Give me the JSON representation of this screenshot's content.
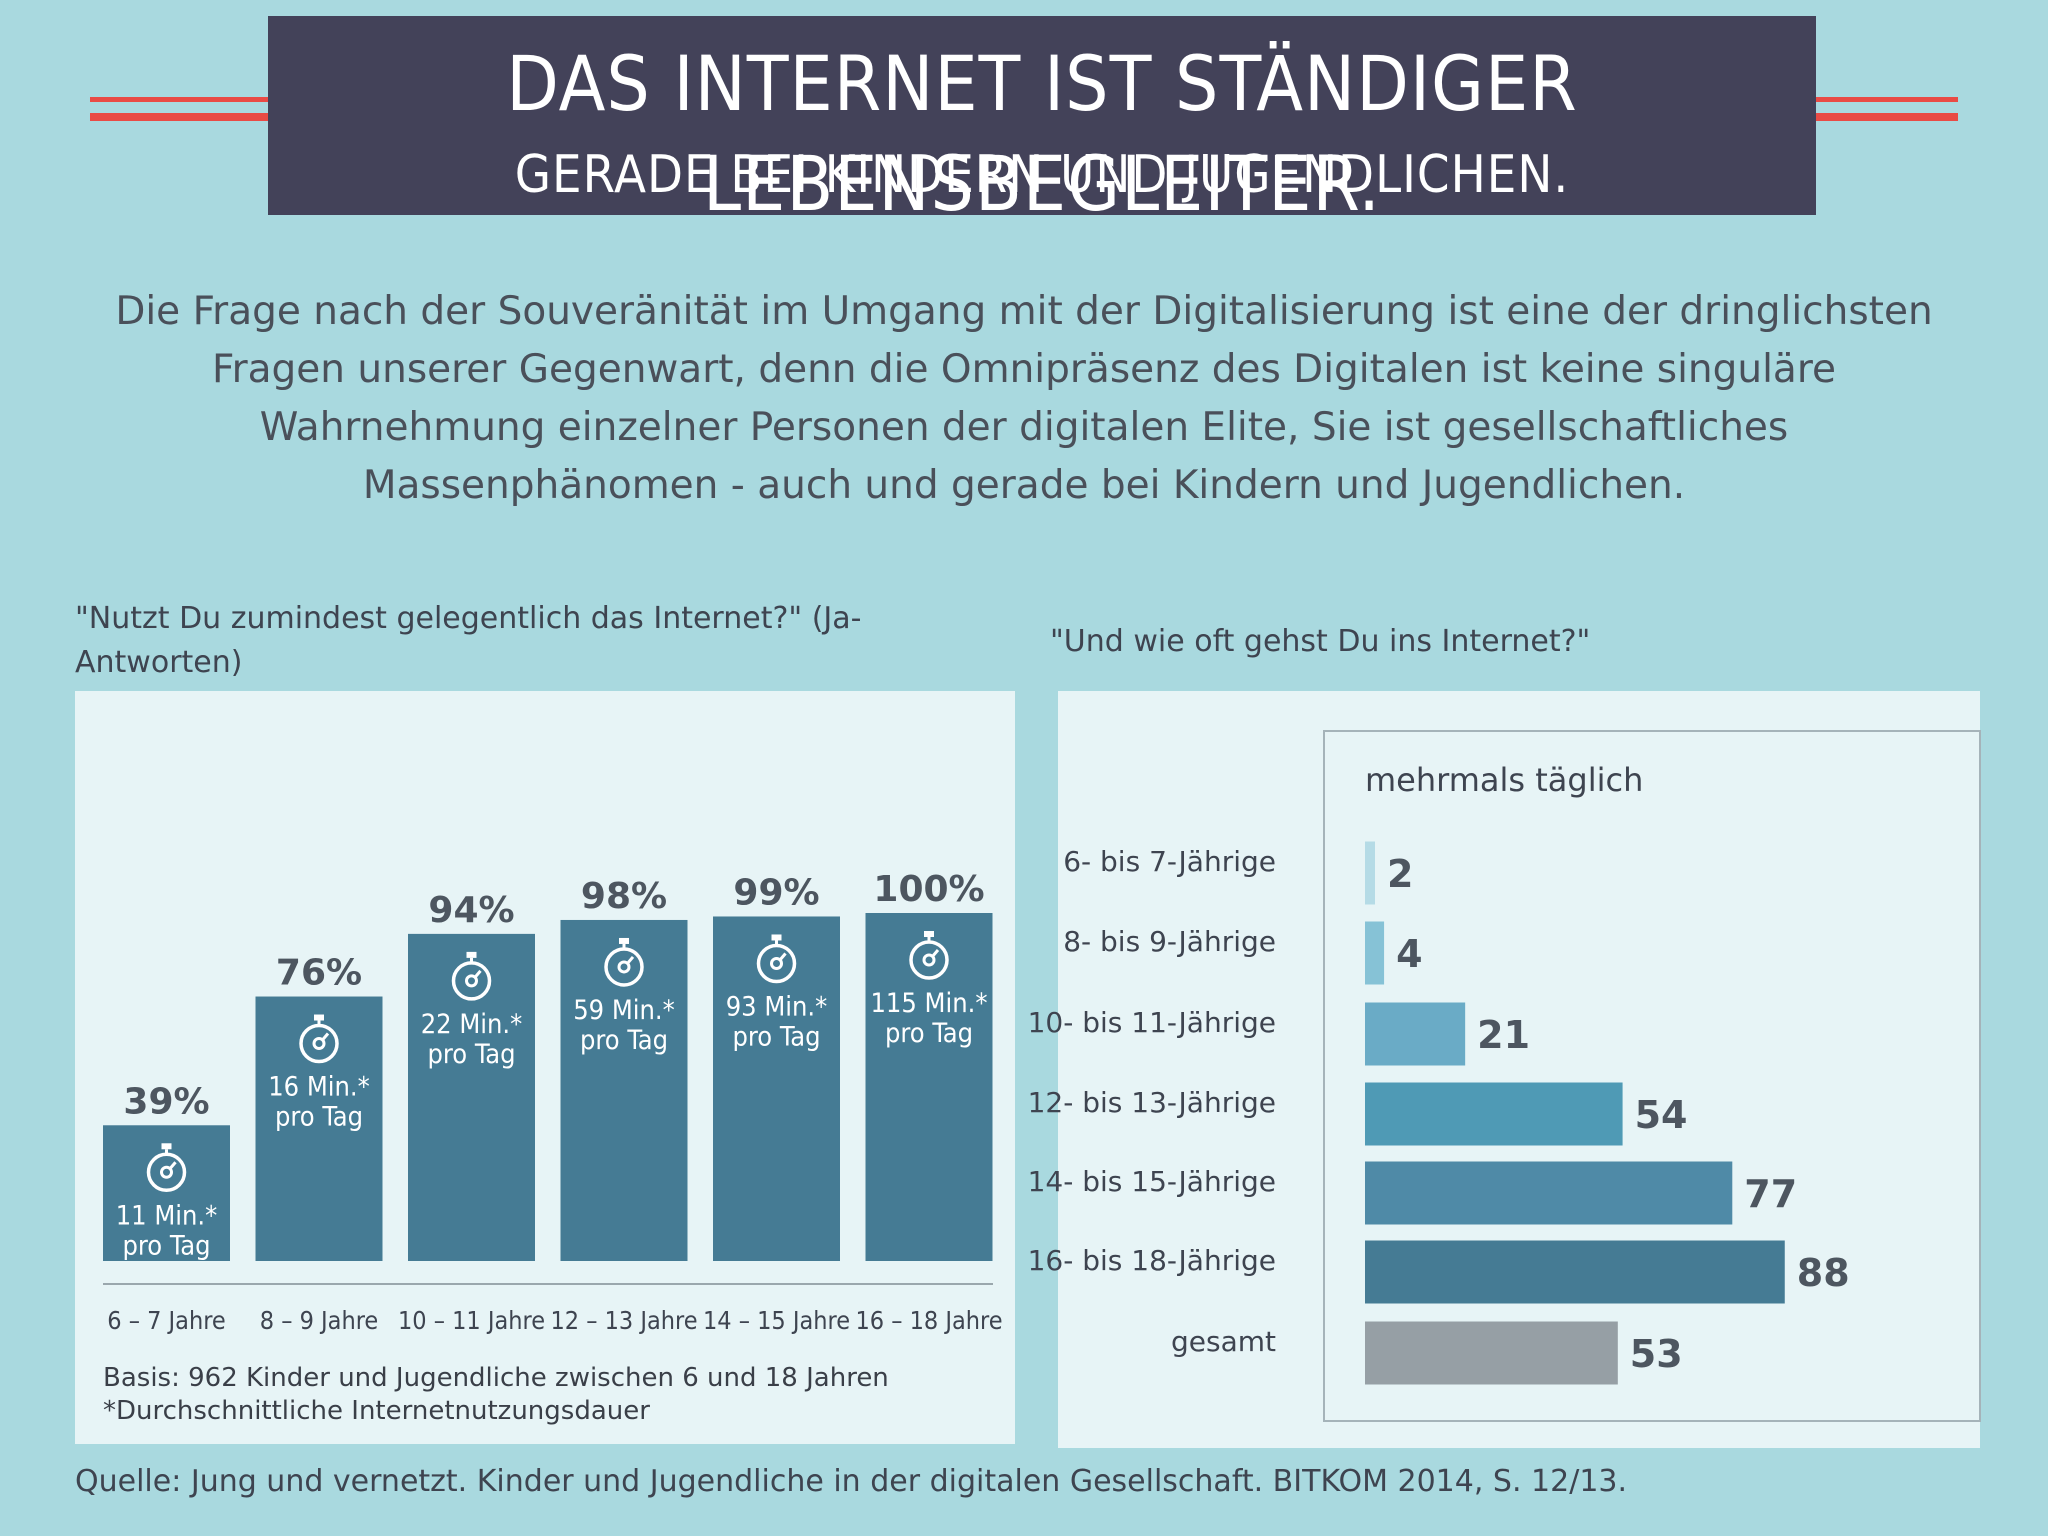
{
  "header": {
    "title": "DAS INTERNET IST STÄNDIGER LEBENSBEGLEITER.",
    "subtitle": "GERADE BEI KINDERN UND JUGENDLICHEN."
  },
  "intro": {
    "lines": [
      "Die Frage nach der Souveränität im Umgang mit der Digitalisierung ist eine der dringlichsten",
      "Fragen unserer Gegenwart, denn die Omnipräsenz des Digitalen ist keine singuläre",
      "Wahrnehmung einzelner Personen der digitalen Elite, Sie ist gesellschaftliches",
      "Massenphänomen - auch und gerade bei Kindern und Jugendlichen."
    ]
  },
  "colors": {
    "background": "#a9d9df",
    "banner": "#434259",
    "accent_red": "#e94b45",
    "bar_dark": "#457b94",
    "total_gray": "#969fa5"
  },
  "chart_data": [
    {
      "type": "bar",
      "title": "\"Nutzt Du zumindest gelegentlich das Internet?\" (Ja-Antworten)",
      "title_lines": [
        "\"Nutzt Du zumindest gelegentlich das Internet?\" (Ja-",
        "Antworten)"
      ],
      "categories": [
        "6 – 7 Jahre",
        "8 – 9 Jahre",
        "10 – 11 Jahre",
        "12 – 13 Jahre",
        "14 – 15 Jahre",
        "16 – 18 Jahre"
      ],
      "values": [
        39,
        76,
        94,
        98,
        99,
        100
      ],
      "value_labels": [
        "39%",
        "76%",
        "94%",
        "98%",
        "99%",
        "100%"
      ],
      "minutes_labels": [
        "11 Min.*",
        "16 Min.*",
        "22 Min.*",
        "59 Min.*",
        "93 Min.*",
        "115 Min.*"
      ],
      "minutes": [
        11,
        16,
        22,
        59,
        93,
        115
      ],
      "per_day_label": "pro Tag",
      "icon": "stopwatch-icon",
      "ylim": [
        0,
        100
      ],
      "grid": false,
      "notes": [
        "Basis: 962 Kinder und Jugendliche zwischen 6 und 18 Jahren",
        "*Durchschnittliche Internetnutzungsdauer"
      ]
    },
    {
      "type": "bar",
      "orientation": "horizontal",
      "title": "\"Und wie oft gehst Du ins Internet?\"",
      "series_label": "mehrmals täglich",
      "categories": [
        "6- bis 7-Jährige",
        "8- bis 9-Jährige",
        "10- bis 11-Jährige",
        "12- bis 13-Jährige",
        "14- bis 15-Jährige",
        "16- bis 18-Jährige",
        "gesamt"
      ],
      "values": [
        2,
        4,
        21,
        54,
        77,
        88,
        53
      ],
      "bar_colors": [
        "#b5dbe6",
        "#86c2d6",
        "#6aabc6",
        "#4f9ab5",
        "#4f8aa7",
        "#457b94",
        "#969fa5"
      ],
      "xlim": [
        0,
        100
      ],
      "grid": false
    }
  ],
  "source": "Quelle: Jung und vernetzt. Kinder und Jugendliche in der digitalen Gesellschaft. BITKOM 2014, S. 12/13."
}
